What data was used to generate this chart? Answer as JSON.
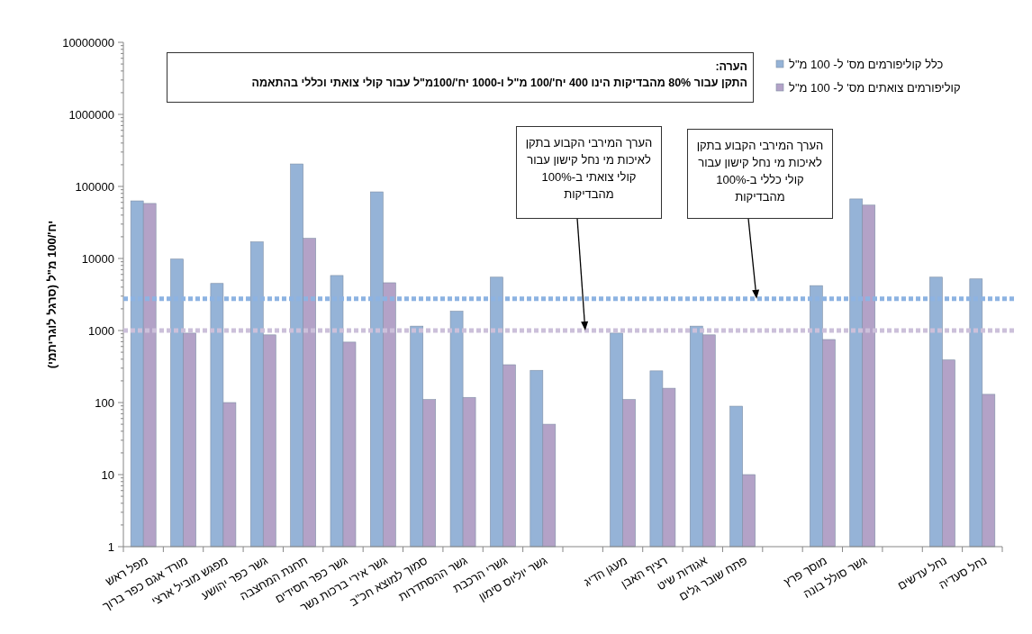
{
  "chart_data": {
    "type": "bar",
    "ylabel": "יח'/100 מ\"ל (סרגל לוגריתמי)",
    "categories": [
      "מפל ראש",
      "מורד אגם כפר ברוך",
      "מפגש מוביל ארצי",
      "גשר כפר יהושע",
      "תחנת המחצבה",
      "גשר כפר חסידים",
      "גשר אירי ברכות נשר",
      "סמוך למוצא חכ\"ב",
      "גשר ההסתדרות",
      "גשרי הרכבת",
      "גשר יוליוס סימון",
      null,
      "מעגן הדיג",
      "רציף האבן",
      "אגודות שיט",
      "פתח שובר גלים",
      null,
      "מוסך פרץ",
      "גשר סולל בונה",
      null,
      "נחל עדשים",
      "נחל סעדיה"
    ],
    "series": [
      {
        "name": "כלל קוליפורמים מס' ל- 100 מ\"ל",
        "color": "#95b3d7",
        "values": [
          63000,
          9800,
          4500,
          17000,
          205000,
          5800,
          84000,
          1150,
          1850,
          5500,
          280,
          null,
          920,
          275,
          1150,
          89,
          null,
          4200,
          67000,
          null,
          5500,
          5200
        ]
      },
      {
        "name": "קוליפורמים צואתים מס' ל- 100 מ\"ל",
        "color": "#b3a2c7",
        "values": [
          58000,
          920,
          100,
          870,
          19000,
          690,
          4600,
          110,
          118,
          335,
          50,
          null,
          110,
          158,
          870,
          10,
          null,
          750,
          55000,
          null,
          390,
          130
        ]
      }
    ],
    "log": "y",
    "ylim": [
      1,
      10000000
    ],
    "yticks": [
      1,
      10,
      100,
      1000,
      10000,
      100000,
      1000000,
      10000000
    ],
    "legend": "top right",
    "annotations": [
      "הערה:",
      "התקן עבור 80% מהבדיקות הינו 400 יח'/100 מ\"ל ו-1000 יח'/100מ\"ל  עבור קולי צואתי וכללי בהתאמה",
      "הערך המירבי הקבוע בתקן לאיכות מי נחל קישון עבור קולי כללי ב-100% מהבדיקות",
      "הערך המירבי הקבוע בתקן לאיכות מי נחל קישון עבור קולי צואתי ב-100% מהבדיקות"
    ],
    "ref_lines": [
      {
        "axis": "y",
        "value": 2750,
        "color": "#8db3e2",
        "line_style": "dotted"
      },
      {
        "axis": "y",
        "value": 1000,
        "color": "#ccc0da",
        "line_style": "dotted"
      }
    ]
  }
}
